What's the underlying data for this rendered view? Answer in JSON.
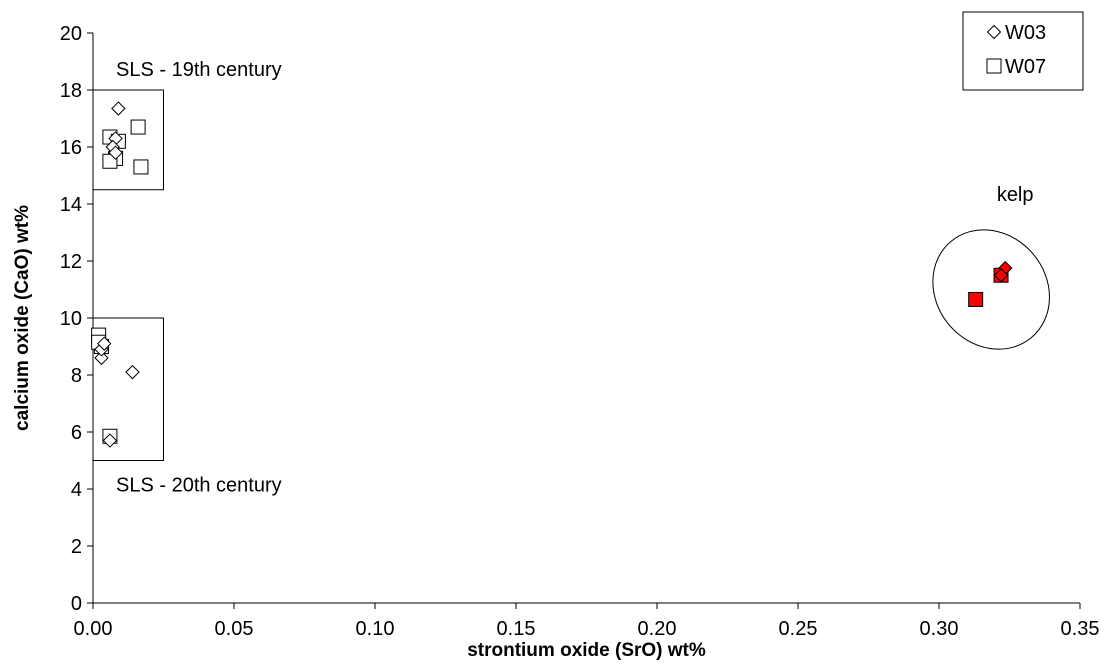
{
  "chart_data": {
    "type": "scatter",
    "title": "",
    "xlabel": "strontium oxide (SrO) wt%",
    "ylabel": "calcium oxide (CaO) wt%",
    "xlim": [
      0,
      0.35
    ],
    "ylim": [
      0,
      20
    ],
    "x_ticks": [
      "0.00",
      "0.05",
      "0.10",
      "0.15",
      "0.20",
      "0.25",
      "0.30",
      "0.35"
    ],
    "y_ticks": [
      "0",
      "2",
      "4",
      "6",
      "8",
      "10",
      "12",
      "14",
      "16",
      "18",
      "20"
    ],
    "grid": false,
    "legend_position": "top-right",
    "series": [
      {
        "name": "W03",
        "marker": "diamond",
        "points": [
          {
            "x": 0.009,
            "y": 17.35
          },
          {
            "x": 0.008,
            "y": 16.3
          },
          {
            "x": 0.007,
            "y": 16.0
          },
          {
            "x": 0.008,
            "y": 15.8
          },
          {
            "x": 0.003,
            "y": 8.6
          },
          {
            "x": 0.003,
            "y": 8.9
          },
          {
            "x": 0.004,
            "y": 9.1
          },
          {
            "x": 0.014,
            "y": 8.1
          },
          {
            "x": 0.006,
            "y": 5.7
          },
          {
            "x": 0.3235,
            "y": 11.75,
            "highlight": true
          },
          {
            "x": 0.322,
            "y": 11.5,
            "highlight": true
          }
        ]
      },
      {
        "name": "W07",
        "marker": "square",
        "points": [
          {
            "x": 0.006,
            "y": 16.35
          },
          {
            "x": 0.009,
            "y": 16.2
          },
          {
            "x": 0.016,
            "y": 16.7
          },
          {
            "x": 0.008,
            "y": 15.6
          },
          {
            "x": 0.006,
            "y": 15.5
          },
          {
            "x": 0.017,
            "y": 15.3
          },
          {
            "x": 0.002,
            "y": 9.4
          },
          {
            "x": 0.003,
            "y": 9.0
          },
          {
            "x": 0.002,
            "y": 9.15
          },
          {
            "x": 0.006,
            "y": 5.85
          },
          {
            "x": 0.313,
            "y": 10.65,
            "highlight": true
          },
          {
            "x": 0.322,
            "y": 11.5,
            "highlight": true
          }
        ]
      }
    ],
    "highlight_fill": "#ff0000",
    "regions": [
      {
        "kind": "rect",
        "label": "SLS - 19th century",
        "x0": 0,
        "x1": 0.025,
        "y0": 14.5,
        "y1": 18
      },
      {
        "kind": "rect",
        "label": "SLS - 20th century",
        "x0": 0,
        "x1": 0.025,
        "y0": 5,
        "y1": 10
      },
      {
        "kind": "ellipse",
        "label": "kelp",
        "cx": 0.3185,
        "cy": 11.0,
        "rx": 0.0195,
        "ry": 2.2
      }
    ]
  }
}
